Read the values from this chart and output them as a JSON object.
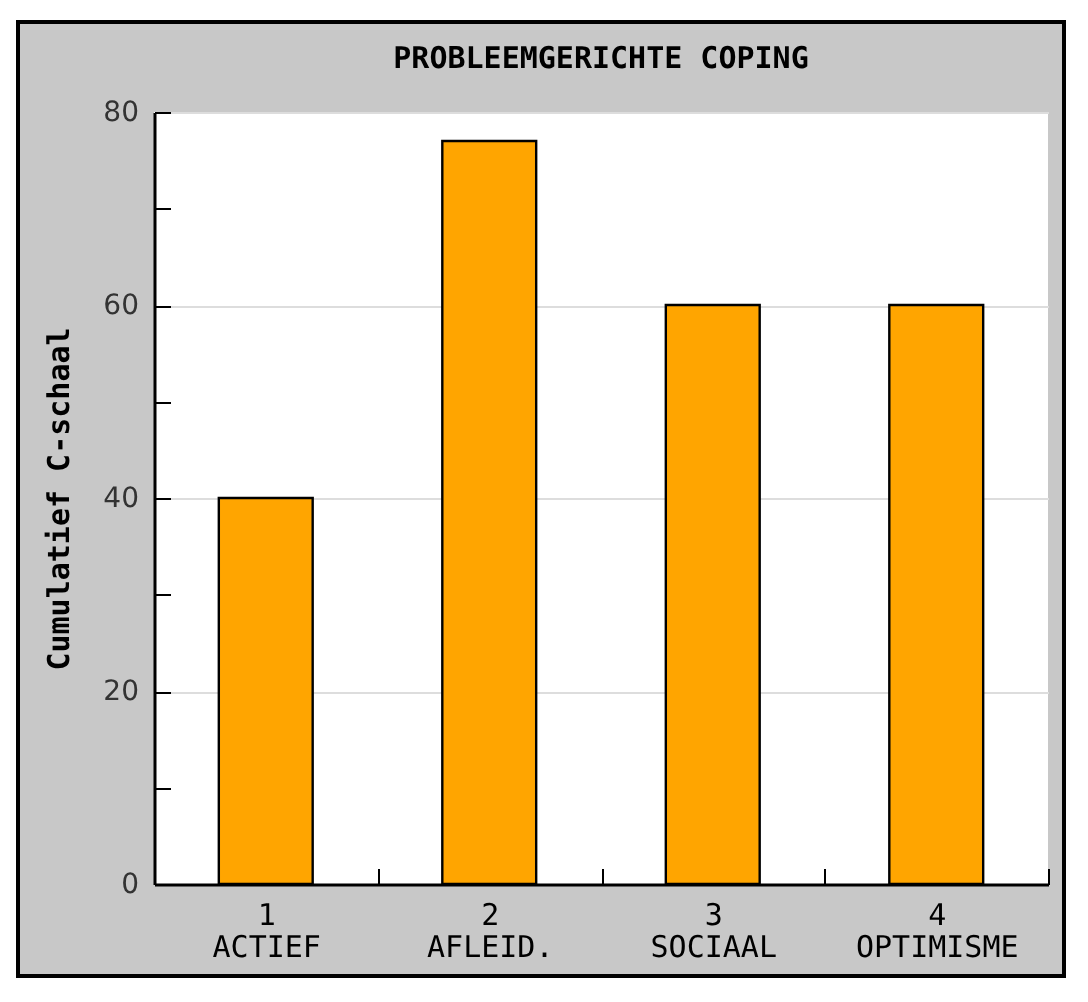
{
  "chart_data": {
    "type": "bar",
    "title": "PROBLEEMGERICHTE COPING",
    "ylabel": "Cumulatief C-schaal",
    "categories": [
      "1\nACTIEF",
      "2\nAFLEID.",
      "3\nSOCIAAL",
      "4\nOPTIMISME"
    ],
    "values": [
      40,
      77,
      60,
      60
    ],
    "color": "#ffa500",
    "ylim": [
      0,
      80
    ],
    "yticks": [
      0,
      {
        "value": 10,
        "label": null
      },
      20,
      {
        "value": 30,
        "label": null
      },
      40,
      {
        "value": 50,
        "label": null
      },
      60,
      {
        "value": 70,
        "label": null
      },
      80
    ],
    "grid": "y"
  }
}
